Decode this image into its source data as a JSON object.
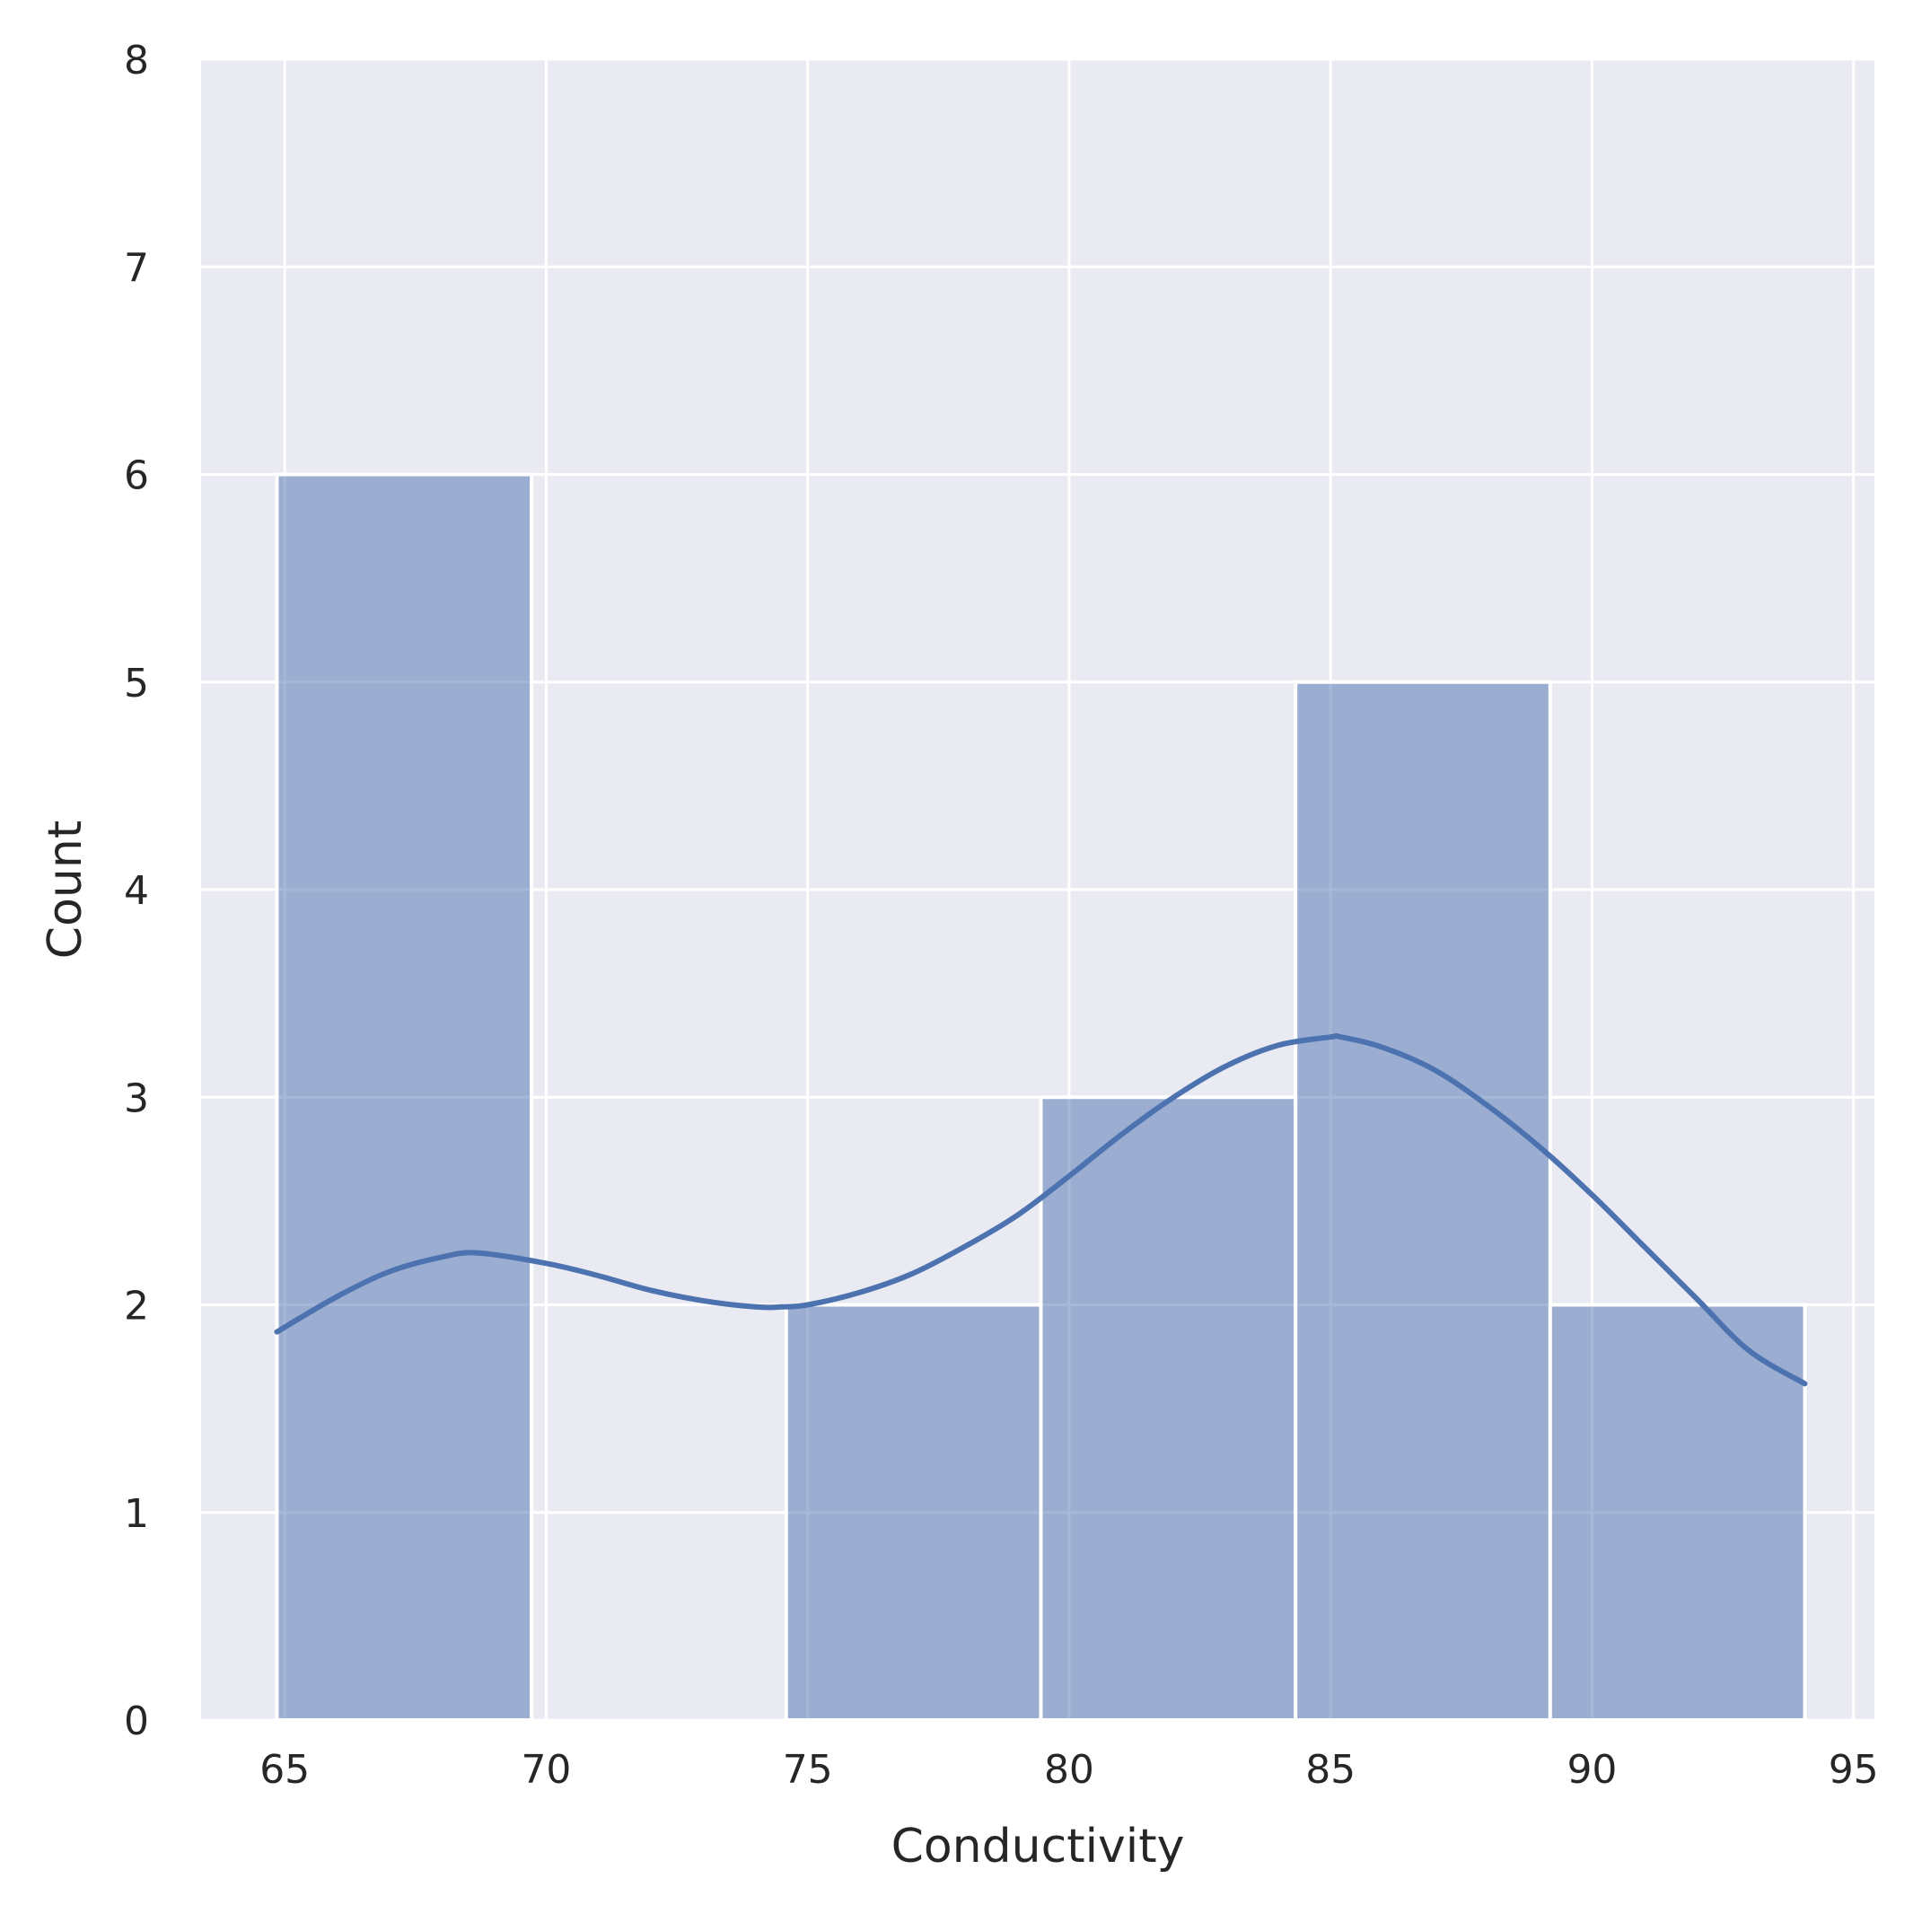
{
  "chart_data": {
    "type": "bar",
    "subtype": "histogram",
    "xlabel": "Conductivity",
    "ylabel": "Count",
    "xlim": [
      63.4,
      95.4
    ],
    "ylim": [
      0,
      8
    ],
    "x_ticks": [
      65,
      70,
      75,
      80,
      85,
      90,
      95
    ],
    "y_ticks": [
      0,
      1,
      2,
      3,
      4,
      5,
      6,
      7,
      8
    ],
    "grid": true,
    "bins": [
      {
        "start": 64.85,
        "end": 69.72,
        "count": 6
      },
      {
        "start": 69.72,
        "end": 74.59,
        "count": 0
      },
      {
        "start": 74.59,
        "end": 79.46,
        "count": 2
      },
      {
        "start": 79.46,
        "end": 84.33,
        "count": 3
      },
      {
        "start": 84.33,
        "end": 89.2,
        "count": 5
      },
      {
        "start": 89.2,
        "end": 94.07,
        "count": 2
      }
    ],
    "kde": {
      "x": [
        64.85,
        66,
        67,
        68,
        68.7,
        70,
        71,
        72,
        73,
        74,
        74.5,
        75,
        76,
        77,
        78,
        79,
        80,
        81,
        82,
        83,
        84,
        85,
        85.2,
        86,
        87,
        88,
        89,
        90,
        91,
        92,
        93,
        94.07
      ],
      "y": [
        1.87,
        2.04,
        2.16,
        2.23,
        2.25,
        2.2,
        2.14,
        2.07,
        2.02,
        1.99,
        1.99,
        2.0,
        2.06,
        2.15,
        2.28,
        2.43,
        2.62,
        2.82,
        3.0,
        3.15,
        3.25,
        3.29,
        3.29,
        3.24,
        3.13,
        2.96,
        2.76,
        2.53,
        2.28,
        2.03,
        1.78,
        1.62
      ]
    },
    "colors": {
      "background": "#eaeaf2",
      "grid": "#ffffff",
      "bar_fill": "#4c72b0",
      "bar_opacity": 0.5,
      "kde_line": "#4c72b0",
      "text": "#262626"
    }
  }
}
